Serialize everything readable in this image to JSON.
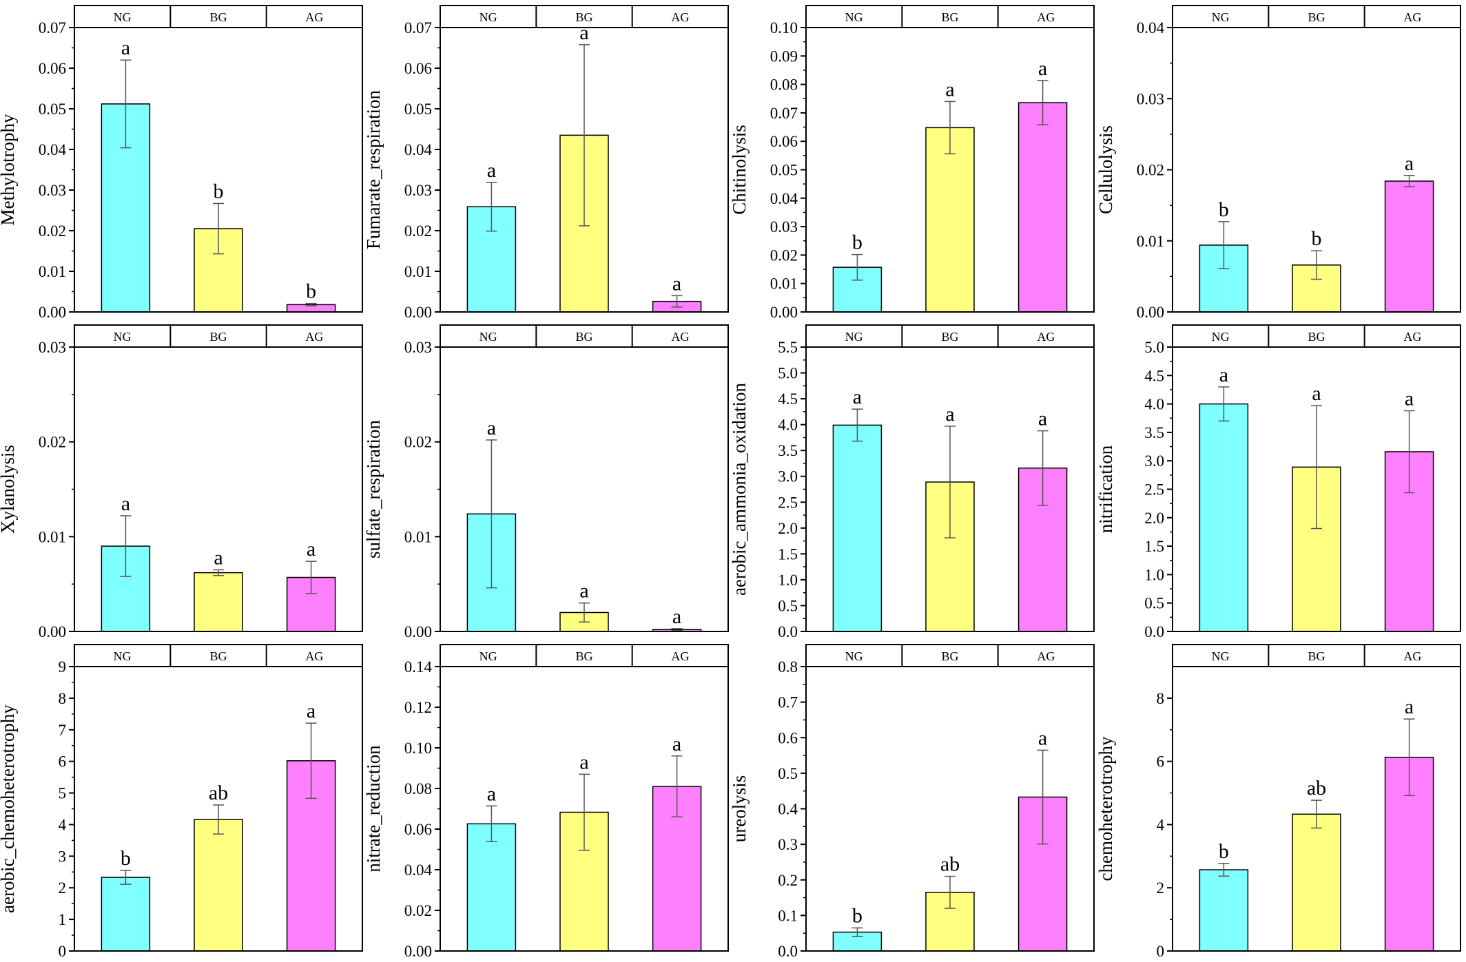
{
  "colors": {
    "NG": "#80ffff",
    "BG": "#ffff80",
    "AG": "#ff80ff",
    "axis": "#000000",
    "error_bar": "#555555"
  },
  "chart_data": [
    {
      "type": "bar",
      "categories": [
        "NG",
        "BG",
        "AG"
      ],
      "ylabel": "Methylotrophy",
      "ylim": [
        0,
        0.07
      ],
      "yticks": [
        0,
        0.01,
        0.02,
        0.03,
        0.04,
        0.05,
        0.06,
        0.07
      ],
      "tick_decimals": 2,
      "values": [
        0.0512,
        0.0205,
        0.0018
      ],
      "errors": [
        0.0108,
        0.0062,
        0.0003
      ],
      "letters": [
        "a",
        "b",
        "b"
      ]
    },
    {
      "type": "bar",
      "categories": [
        "NG",
        "BG",
        "AG"
      ],
      "ylabel": "Fumarate_respiration",
      "ylim": [
        0,
        0.07
      ],
      "yticks": [
        0,
        0.01,
        0.02,
        0.03,
        0.04,
        0.05,
        0.06,
        0.07
      ],
      "tick_decimals": 2,
      "values": [
        0.0259,
        0.0435,
        0.0026
      ],
      "errors": [
        0.006,
        0.0223,
        0.0014
      ],
      "letters": [
        "a",
        "a",
        "a"
      ]
    },
    {
      "type": "bar",
      "categories": [
        "NG",
        "BG",
        "AG"
      ],
      "ylabel": "Chitinolysis",
      "ylim": [
        0,
        0.1
      ],
      "yticks": [
        0,
        0.01,
        0.02,
        0.03,
        0.04,
        0.05,
        0.06,
        0.07,
        0.08,
        0.09,
        0.1
      ],
      "tick_decimals": 2,
      "values": [
        0.0157,
        0.0648,
        0.0736
      ],
      "errors": [
        0.0045,
        0.0092,
        0.0078
      ],
      "letters": [
        "b",
        "a",
        "a"
      ]
    },
    {
      "type": "bar",
      "categories": [
        "NG",
        "BG",
        "AG"
      ],
      "ylabel": "Cellulolysis",
      "ylim": [
        0,
        0.04
      ],
      "yticks": [
        0,
        0.01,
        0.02,
        0.03,
        0.04
      ],
      "tick_decimals": 2,
      "values": [
        0.0094,
        0.0066,
        0.0184
      ],
      "errors": [
        0.0033,
        0.002,
        0.0008
      ],
      "letters": [
        "b",
        "b",
        "a"
      ]
    },
    {
      "type": "bar",
      "categories": [
        "NG",
        "BG",
        "AG"
      ],
      "ylabel": "Xylanolysis",
      "ylim": [
        0,
        0.03
      ],
      "yticks": [
        0,
        0.01,
        0.02,
        0.03
      ],
      "tick_decimals": 2,
      "values": [
        0.009,
        0.0062,
        0.0057
      ],
      "errors": [
        0.0032,
        0.0003,
        0.0017
      ],
      "letters": [
        "a",
        "a",
        "a"
      ]
    },
    {
      "type": "bar",
      "categories": [
        "NG",
        "BG",
        "AG"
      ],
      "ylabel": "sulfate_respiration",
      "ylim": [
        0,
        0.03
      ],
      "yticks": [
        0,
        0.01,
        0.02,
        0.03
      ],
      "tick_decimals": 2,
      "values": [
        0.0124,
        0.002,
        0.0002
      ],
      "errors": [
        0.0078,
        0.001,
        0.0001
      ],
      "letters": [
        "a",
        "a",
        "a"
      ]
    },
    {
      "type": "bar",
      "categories": [
        "NG",
        "BG",
        "AG"
      ],
      "ylabel": "aerobic_ammonia_oxidation",
      "ylim": [
        0,
        5.5
      ],
      "yticks": [
        0,
        0.5,
        1.0,
        1.5,
        2.0,
        2.5,
        3.0,
        3.5,
        4.0,
        4.5,
        5.0,
        5.5
      ],
      "tick_decimals": 1,
      "values": [
        3.99,
        2.89,
        3.16
      ],
      "errors": [
        0.31,
        1.08,
        0.72
      ],
      "letters": [
        "a",
        "a",
        "a"
      ]
    },
    {
      "type": "bar",
      "categories": [
        "NG",
        "BG",
        "AG"
      ],
      "ylabel": "nitrification",
      "ylim": [
        0,
        5.0
      ],
      "yticks": [
        0,
        0.5,
        1.0,
        1.5,
        2.0,
        2.5,
        3.0,
        3.5,
        4.0,
        4.5,
        5.0
      ],
      "tick_decimals": 1,
      "values": [
        4.0,
        2.89,
        3.16
      ],
      "errors": [
        0.3,
        1.08,
        0.72
      ],
      "letters": [
        "a",
        "a",
        "a"
      ]
    },
    {
      "type": "bar",
      "categories": [
        "NG",
        "BG",
        "AG"
      ],
      "ylabel": "aerobic_chemoheterotrophy",
      "ylim": [
        0,
        9
      ],
      "yticks": [
        0,
        1,
        2,
        3,
        4,
        5,
        6,
        7,
        8,
        9
      ],
      "tick_decimals": 0,
      "values": [
        2.33,
        4.16,
        6.02
      ],
      "errors": [
        0.22,
        0.46,
        1.19
      ],
      "letters": [
        "b",
        "ab",
        "a"
      ]
    },
    {
      "type": "bar",
      "categories": [
        "NG",
        "BG",
        "AG"
      ],
      "ylabel": "nitrate_reduction",
      "ylim": [
        0,
        0.14
      ],
      "yticks": [
        0,
        0.02,
        0.04,
        0.06,
        0.08,
        0.1,
        0.12,
        0.14
      ],
      "tick_decimals": 2,
      "values": [
        0.0626,
        0.0683,
        0.081
      ],
      "errors": [
        0.0088,
        0.0187,
        0.015
      ],
      "letters": [
        "a",
        "a",
        "a"
      ]
    },
    {
      "type": "bar",
      "categories": [
        "NG",
        "BG",
        "AG"
      ],
      "ylabel": "ureolysis",
      "ylim": [
        0,
        0.8
      ],
      "yticks": [
        0,
        0.1,
        0.2,
        0.3,
        0.4,
        0.5,
        0.6,
        0.7,
        0.8
      ],
      "tick_decimals": 1,
      "values": [
        0.053,
        0.165,
        0.433
      ],
      "errors": [
        0.012,
        0.045,
        0.132
      ],
      "letters": [
        "b",
        "ab",
        "a"
      ]
    },
    {
      "type": "bar",
      "categories": [
        "NG",
        "BG",
        "AG"
      ],
      "ylabel": "chemoheterotrophy",
      "ylim": [
        0,
        9
      ],
      "yticks": [
        0,
        2,
        4,
        6,
        8
      ],
      "tick_decimals": 0,
      "values": [
        2.57,
        4.33,
        6.13
      ],
      "errors": [
        0.2,
        0.44,
        1.21
      ],
      "letters": [
        "b",
        "ab",
        "a"
      ]
    }
  ]
}
